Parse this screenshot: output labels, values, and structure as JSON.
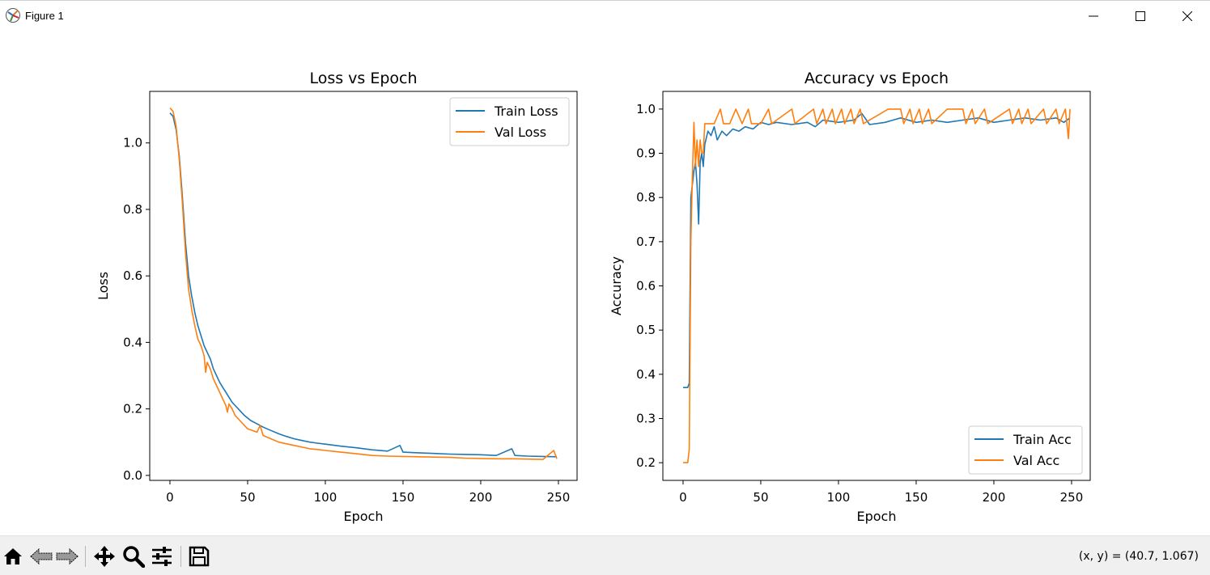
{
  "window": {
    "title": "Figure 1",
    "icon": "matplotlib-icon"
  },
  "toolbar": {
    "tools": [
      "home-icon",
      "back-icon",
      "forward-icon",
      "pan-icon",
      "zoom-icon",
      "configure-icon",
      "save-icon"
    ],
    "coordinate_readout": "(x, y) = (40.7, 1.067)"
  },
  "colors": {
    "train": "#1f77b4",
    "val": "#ff7f0e"
  },
  "chart_data": [
    {
      "type": "line",
      "title": "Loss vs Epoch",
      "xlabel": "Epoch",
      "ylabel": "Loss",
      "xlim": [
        -13,
        262
      ],
      "ylim": [
        -0.015,
        1.155
      ],
      "xticks": [
        "0",
        "50",
        "100",
        "150",
        "200",
        "250"
      ],
      "yticks": [
        "0.0",
        "0.2",
        "0.4",
        "0.6",
        "0.8",
        "1.0"
      ],
      "legend_position": "top-right",
      "grid": false,
      "series": [
        {
          "name": "Train Loss",
          "color": "#1f77b4",
          "points": [
            [
              0,
              1.09
            ],
            [
              2,
              1.08
            ],
            [
              4,
              1.04
            ],
            [
              6,
              0.96
            ],
            [
              8,
              0.84
            ],
            [
              10,
              0.7
            ],
            [
              12,
              0.6
            ],
            [
              14,
              0.54
            ],
            [
              16,
              0.49
            ],
            [
              18,
              0.45
            ],
            [
              20,
              0.42
            ],
            [
              22,
              0.39
            ],
            [
              24,
              0.37
            ],
            [
              26,
              0.35
            ],
            [
              28,
              0.32
            ],
            [
              30,
              0.3
            ],
            [
              32,
              0.28
            ],
            [
              34,
              0.265
            ],
            [
              36,
              0.25
            ],
            [
              38,
              0.235
            ],
            [
              40,
              0.22
            ],
            [
              42,
              0.21
            ],
            [
              45,
              0.195
            ],
            [
              48,
              0.18
            ],
            [
              52,
              0.165
            ],
            [
              56,
              0.155
            ],
            [
              60,
              0.145
            ],
            [
              65,
              0.135
            ],
            [
              70,
              0.125
            ],
            [
              75,
              0.117
            ],
            [
              80,
              0.11
            ],
            [
              85,
              0.105
            ],
            [
              90,
              0.1
            ],
            [
              95,
              0.097
            ],
            [
              100,
              0.094
            ],
            [
              110,
              0.088
            ],
            [
              120,
              0.083
            ],
            [
              130,
              0.077
            ],
            [
              140,
              0.073
            ],
            [
              148,
              0.09
            ],
            [
              150,
              0.07
            ],
            [
              160,
              0.068
            ],
            [
              170,
              0.066
            ],
            [
              180,
              0.064
            ],
            [
              190,
              0.063
            ],
            [
              200,
              0.062
            ],
            [
              210,
              0.06
            ],
            [
              220,
              0.08
            ],
            [
              222,
              0.06
            ],
            [
              230,
              0.058
            ],
            [
              240,
              0.057
            ],
            [
              249,
              0.056
            ]
          ]
        },
        {
          "name": "Val Loss",
          "color": "#ff7f0e",
          "points": [
            [
              0,
              1.105
            ],
            [
              2,
              1.095
            ],
            [
              4,
              1.05
            ],
            [
              6,
              0.95
            ],
            [
              8,
              0.82
            ],
            [
              10,
              0.67
            ],
            [
              12,
              0.56
            ],
            [
              14,
              0.5
            ],
            [
              16,
              0.45
            ],
            [
              18,
              0.41
            ],
            [
              20,
              0.39
            ],
            [
              22,
              0.36
            ],
            [
              23,
              0.31
            ],
            [
              24,
              0.34
            ],
            [
              26,
              0.32
            ],
            [
              28,
              0.29
            ],
            [
              30,
              0.27
            ],
            [
              32,
              0.25
            ],
            [
              34,
              0.23
            ],
            [
              36,
              0.21
            ],
            [
              37,
              0.19
            ],
            [
              38,
              0.215
            ],
            [
              40,
              0.2
            ],
            [
              42,
              0.18
            ],
            [
              45,
              0.165
            ],
            [
              48,
              0.15
            ],
            [
              50,
              0.14
            ],
            [
              53,
              0.135
            ],
            [
              56,
              0.13
            ],
            [
              58,
              0.15
            ],
            [
              60,
              0.12
            ],
            [
              65,
              0.11
            ],
            [
              70,
              0.1
            ],
            [
              75,
              0.095
            ],
            [
              80,
              0.09
            ],
            [
              85,
              0.085
            ],
            [
              90,
              0.08
            ],
            [
              95,
              0.078
            ],
            [
              100,
              0.075
            ],
            [
              110,
              0.07
            ],
            [
              120,
              0.065
            ],
            [
              130,
              0.06
            ],
            [
              140,
              0.058
            ],
            [
              150,
              0.057
            ],
            [
              160,
              0.056
            ],
            [
              170,
              0.055
            ],
            [
              180,
              0.054
            ],
            [
              190,
              0.052
            ],
            [
              200,
              0.051
            ],
            [
              210,
              0.05
            ],
            [
              220,
              0.05
            ],
            [
              230,
              0.049
            ],
            [
              240,
              0.048
            ],
            [
              247,
              0.075
            ],
            [
              249,
              0.05
            ]
          ]
        }
      ]
    },
    {
      "type": "line",
      "title": "Accuracy vs Epoch",
      "xlabel": "Epoch",
      "ylabel": "Accuracy",
      "xlim": [
        -13,
        262
      ],
      "ylim": [
        0.16,
        1.04
      ],
      "xticks": [
        "0",
        "50",
        "100",
        "150",
        "200",
        "250"
      ],
      "yticks": [
        "0.2",
        "0.3",
        "0.4",
        "0.5",
        "0.6",
        "0.7",
        "0.8",
        "0.9",
        "1.0"
      ],
      "legend_position": "bottom-right",
      "grid": false,
      "series": [
        {
          "name": "Train Acc",
          "color": "#1f77b4",
          "points": [
            [
              0,
              0.37
            ],
            [
              3,
              0.37
            ],
            [
              4,
              0.38
            ],
            [
              5,
              0.8
            ],
            [
              7,
              0.86
            ],
            [
              8,
              0.88
            ],
            [
              9,
              0.83
            ],
            [
              10,
              0.74
            ],
            [
              11,
              0.88
            ],
            [
              12,
              0.9
            ],
            [
              13,
              0.87
            ],
            [
              14,
              0.92
            ],
            [
              16,
              0.95
            ],
            [
              18,
              0.94
            ],
            [
              20,
              0.96
            ],
            [
              22,
              0.93
            ],
            [
              25,
              0.95
            ],
            [
              28,
              0.94
            ],
            [
              32,
              0.955
            ],
            [
              36,
              0.95
            ],
            [
              40,
              0.96
            ],
            [
              45,
              0.955
            ],
            [
              50,
              0.97
            ],
            [
              55,
              0.965
            ],
            [
              60,
              0.97
            ],
            [
              70,
              0.965
            ],
            [
              80,
              0.97
            ],
            [
              85,
              0.96
            ],
            [
              90,
              0.975
            ],
            [
              100,
              0.97
            ],
            [
              110,
              0.975
            ],
            [
              115,
              0.99
            ],
            [
              120,
              0.965
            ],
            [
              130,
              0.97
            ],
            [
              135,
              0.975
            ],
            [
              140,
              0.98
            ],
            [
              150,
              0.97
            ],
            [
              160,
              0.975
            ],
            [
              170,
              0.97
            ],
            [
              180,
              0.975
            ],
            [
              190,
              0.98
            ],
            [
              200,
              0.97
            ],
            [
              210,
              0.975
            ],
            [
              220,
              0.98
            ],
            [
              230,
              0.975
            ],
            [
              240,
              0.98
            ],
            [
              245,
              0.97
            ],
            [
              249,
              0.98
            ]
          ]
        },
        {
          "name": "Val Acc",
          "color": "#ff7f0e",
          "points": [
            [
              0,
              0.2
            ],
            [
              3,
              0.2
            ],
            [
              4,
              0.23
            ],
            [
              5,
              0.7
            ],
            [
              6,
              0.85
            ],
            [
              7,
              0.97
            ],
            [
              8,
              0.87
            ],
            [
              9,
              0.93
            ],
            [
              10,
              0.87
            ],
            [
              11,
              0.93
            ],
            [
              12,
              0.9
            ],
            [
              13,
              0.9
            ],
            [
              14,
              0.967
            ],
            [
              20,
              0.967
            ],
            [
              24,
              1.0
            ],
            [
              26,
              0.967
            ],
            [
              30,
              0.967
            ],
            [
              34,
              1.0
            ],
            [
              38,
              0.967
            ],
            [
              42,
              1.0
            ],
            [
              44,
              0.967
            ],
            [
              50,
              0.967
            ],
            [
              55,
              1.0
            ],
            [
              57,
              0.967
            ],
            [
              70,
              1.0
            ],
            [
              72,
              0.967
            ],
            [
              84,
              1.0
            ],
            [
              86,
              0.967
            ],
            [
              90,
              1.0
            ],
            [
              92,
              0.967
            ],
            [
              96,
              1.0
            ],
            [
              98,
              0.967
            ],
            [
              102,
              1.0
            ],
            [
              104,
              0.967
            ],
            [
              108,
              1.0
            ],
            [
              110,
              0.967
            ],
            [
              114,
              1.0
            ],
            [
              116,
              0.967
            ],
            [
              132,
              1.0
            ],
            [
              140,
              1.0
            ],
            [
              142,
              0.967
            ],
            [
              146,
              1.0
            ],
            [
              148,
              0.967
            ],
            [
              152,
              1.0
            ],
            [
              154,
              0.967
            ],
            [
              158,
              1.0
            ],
            [
              160,
              0.967
            ],
            [
              170,
              1.0
            ],
            [
              180,
              1.0
            ],
            [
              182,
              0.967
            ],
            [
              186,
              1.0
            ],
            [
              188,
              0.967
            ],
            [
              194,
              1.0
            ],
            [
              196,
              0.967
            ],
            [
              210,
              1.0
            ],
            [
              212,
              0.967
            ],
            [
              216,
              1.0
            ],
            [
              218,
              0.967
            ],
            [
              222,
              1.0
            ],
            [
              224,
              0.967
            ],
            [
              232,
              1.0
            ],
            [
              234,
              0.967
            ],
            [
              240,
              1.0
            ],
            [
              242,
              0.967
            ],
            [
              246,
              1.0
            ],
            [
              248,
              0.933
            ],
            [
              249,
              1.0
            ]
          ]
        }
      ]
    }
  ]
}
